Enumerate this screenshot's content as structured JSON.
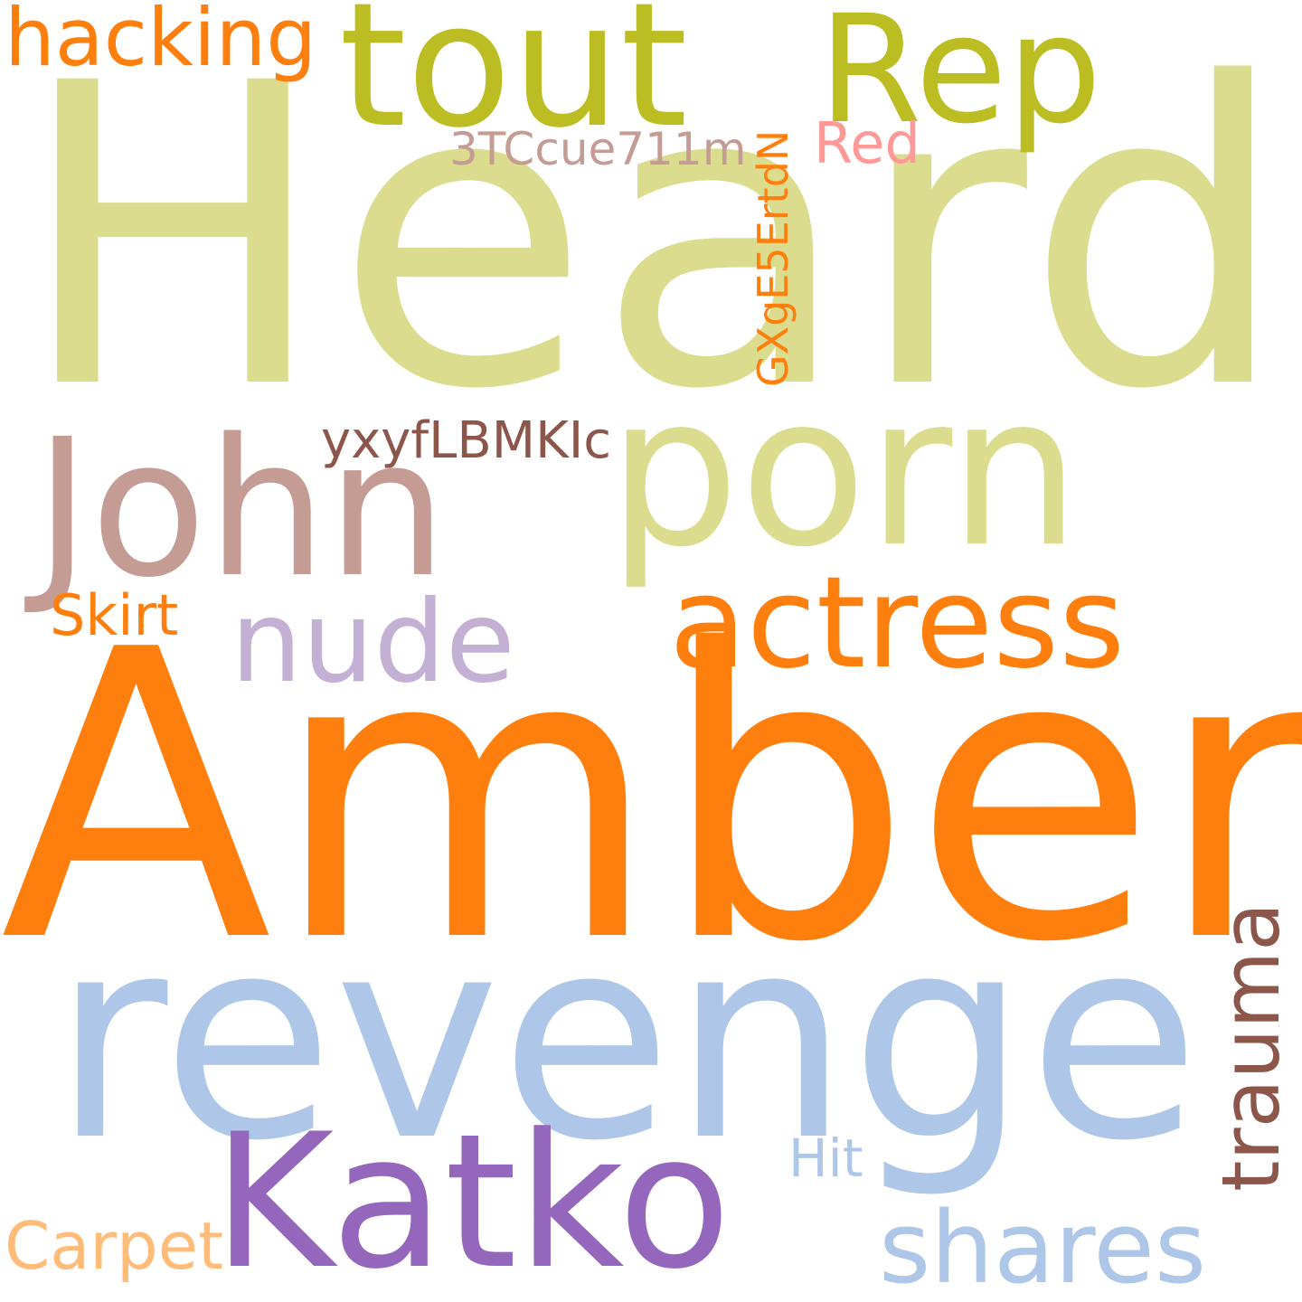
{
  "words": {
    "heard": {
      "text": "Heard",
      "color": "#dbdc8d"
    },
    "tout": {
      "text": "tout",
      "color": "#bcbd22"
    },
    "rep": {
      "text": "Rep",
      "color": "#bcbd22"
    },
    "hacking": {
      "text": "hacking",
      "color": "#ff7f0e"
    },
    "code1": {
      "text": "3TCcue711m",
      "color": "#c49c94"
    },
    "red": {
      "text": "Red",
      "color": "#ff9896"
    },
    "code2": {
      "text": "GXgE5ErtdN",
      "color": "#ff7f0e"
    },
    "code3": {
      "text": "yxyfLBMKIc",
      "color": "#8c564b"
    },
    "john": {
      "text": "John",
      "color": "#c49c94"
    },
    "porn": {
      "text": "porn",
      "color": "#dbdc8d"
    },
    "actress": {
      "text": "actress",
      "color": "#ff7f0e"
    },
    "skirt": {
      "text": "Skirt",
      "color": "#ff7f0e"
    },
    "nude": {
      "text": "nude",
      "color": "#c5b0d5"
    },
    "amber": {
      "text": "Amber",
      "color": "#ff7f0e"
    },
    "trauma": {
      "text": "trauma",
      "color": "#8c564b"
    },
    "revenge": {
      "text": "revenge",
      "color": "#aec7e8"
    },
    "hit": {
      "text": "Hit",
      "color": "#aec7e8"
    },
    "katko": {
      "text": "Katko",
      "color": "#9467bd"
    },
    "shares": {
      "text": "shares",
      "color": "#aec7e8"
    },
    "carpet": {
      "text": "Carpet",
      "color": "#ffbb78"
    }
  }
}
